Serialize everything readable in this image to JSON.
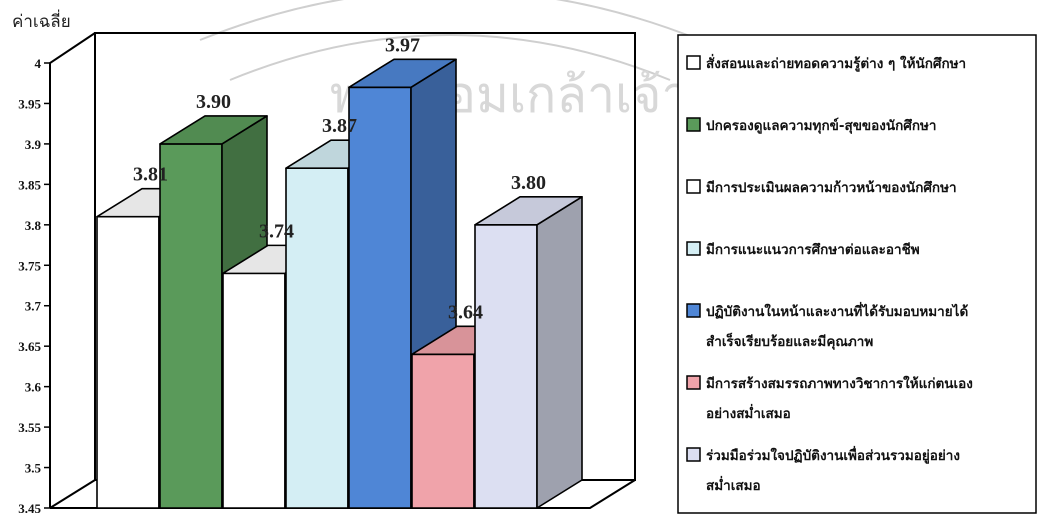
{
  "chart_data": {
    "type": "bar",
    "title": "",
    "ylabel": "ค่าเฉลี่ย",
    "xlabel": "",
    "ylim": [
      3.45,
      4
    ],
    "y_ticks": [
      "3.45",
      "3.5",
      "3.55",
      "3.6",
      "3.65",
      "3.7",
      "3.75",
      "3.8",
      "3.85",
      "3.9",
      "3.95",
      "4"
    ],
    "grid": false,
    "three_d": true,
    "legend_position": "right",
    "series": [
      {
        "name": "สั่งสอนและถ่ายทอดความรู้ต่าง ๆ ให้นักศึกษา",
        "value": 3.81,
        "label": "3.81",
        "color": "#ffffff"
      },
      {
        "name": "ปกครองดูแลความทุกข์-สุขของนักศึกษา",
        "value": 3.9,
        "label": "3.90",
        "color": "#5a9a5a"
      },
      {
        "name": "มีการประเมินผลความก้าวหน้าของนักศึกษา",
        "value": 3.74,
        "label": "3.74",
        "color": "#ffffff"
      },
      {
        "name": "มีการแนะแนวการศึกษาต่อและอาชีพ",
        "value": 3.87,
        "label": "3.87",
        "color": "#d4eef4"
      },
      {
        "name": "ปฏิบัติงานในหน้าและงานที่ได้รับมอบหมายได้สำเร็จเรียบร้อยและมีคุณภาพ",
        "value": 3.97,
        "label": "3.97",
        "color": "#4f86d6"
      },
      {
        "name": "มีการสร้างสมรรถภาพทางวิชาการให้แก่ตนเองอย่างสม่ำเสมอ",
        "value": 3.64,
        "label": "3.64",
        "color": "#f0a3aa"
      },
      {
        "name": "ร่วมมือร่วมใจปฏิบัติงานเพื่อส่วนรวมอยู่อย่างสม่ำเสมอ",
        "value": 3.8,
        "label": "3.80",
        "color": "#dcdff2"
      }
    ],
    "legend": [
      {
        "lines": [
          "สั่งสอนและถ่ายทอดความรู้ต่าง ๆ ให้นักศึกษา"
        ],
        "color": "#ffffff"
      },
      {
        "lines": [
          "ปกครองดูแลความทุกข์-สุขของนักศึกษา"
        ],
        "color": "#5a9a5a"
      },
      {
        "lines": [
          "มีการประเมินผลความก้าวหน้าของนักศึกษา"
        ],
        "color": "#ffffff"
      },
      {
        "lines": [
          "มีการแนะแนวการศึกษาต่อและอาชีพ"
        ],
        "color": "#d4eef4"
      },
      {
        "lines": [
          "ปฏิบัติงานในหน้าและงานที่ได้รับมอบหมายได้",
          "สำเร็จเรียบร้อยและมีคุณภาพ"
        ],
        "color": "#4f86d6"
      },
      {
        "lines": [
          "มีการสร้างสมรรถภาพทางวิชาการให้แก่ตนเอง",
          "อย่างสม่ำเสมอ"
        ],
        "color": "#f0a3aa"
      },
      {
        "lines": [
          "ร่วมมือร่วมใจปฏิบัติงานเพื่อส่วนรวมอยู่อย่าง",
          "สม่ำเสมอ"
        ],
        "color": "#dcdff2"
      }
    ]
  },
  "watermark": {
    "text": "พระจอมเกล้าเจ้าคุณทหาร"
  }
}
